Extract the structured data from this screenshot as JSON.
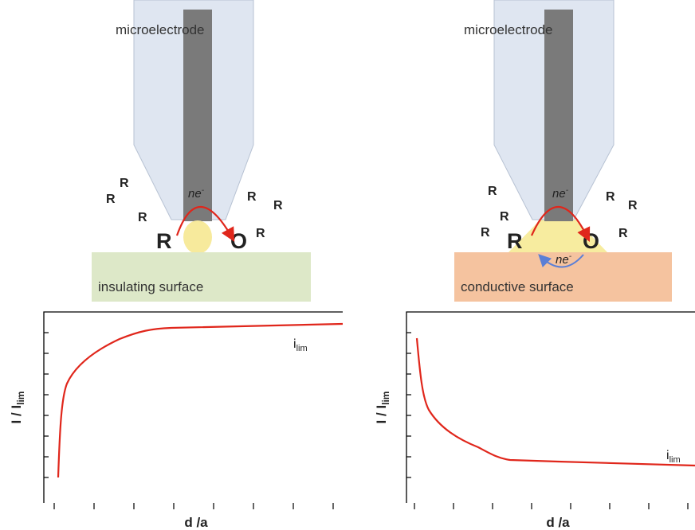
{
  "panels": [
    {
      "electrode_label": "microelectrode",
      "species": [
        "R",
        "R",
        "R",
        "R",
        "R",
        "R",
        "R",
        "O"
      ],
      "electrons": [
        {
          "text": "ne",
          "sup": "-"
        }
      ],
      "surface_label": "insulating surface",
      "plot": {
        "y_label": {
          "text": "I / I",
          "sub": "lim"
        },
        "x_label": "d /a",
        "curve_label": {
          "text": "i",
          "sub": "lim"
        }
      }
    },
    {
      "electrode_label": "microelectrode",
      "species": [
        "R",
        "R",
        "R",
        "R",
        "R",
        "R",
        "R",
        "O"
      ],
      "electrons": [
        {
          "text": "ne",
          "sup": "-"
        },
        {
          "text": "ne",
          "sup": "-"
        }
      ],
      "surface_label": "conductive surface",
      "plot": {
        "y_label": {
          "text": "I / I",
          "sub": "lim"
        },
        "x_label": "d /a",
        "curve_label": {
          "text": "i",
          "sub": "lim"
        }
      }
    }
  ]
}
